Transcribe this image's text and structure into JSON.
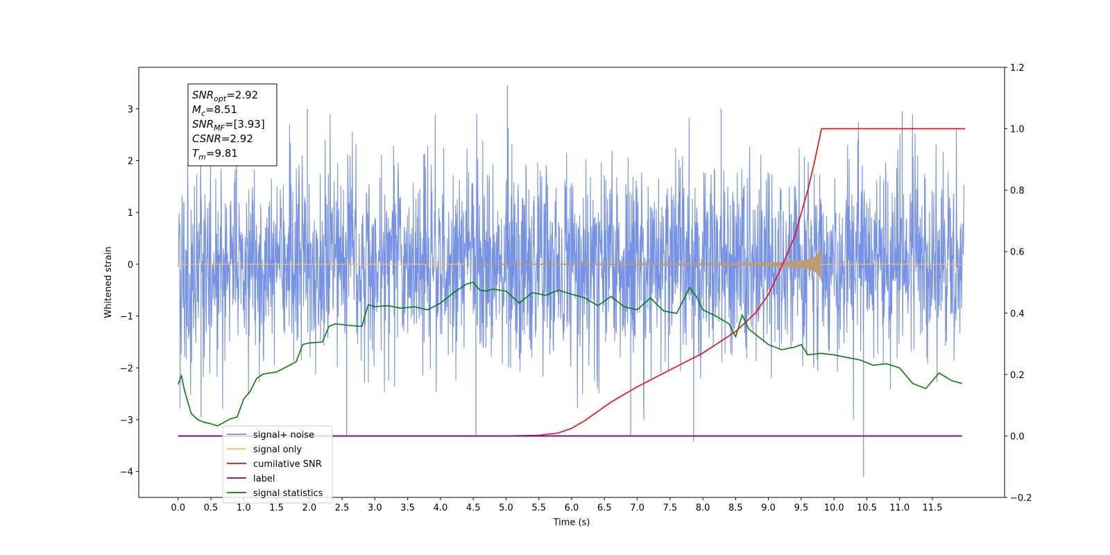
{
  "chart_data": {
    "type": "line",
    "title": "",
    "xlabel": "Time (s)",
    "ylabel": "Whitened strain",
    "y2label": "",
    "xlim": [
      -0.6,
      12.6
    ],
    "ylim": [
      -4.5,
      3.8
    ],
    "y2lim": [
      -0.2,
      1.2
    ],
    "xticks": [
      "0.0",
      "0.5",
      "1.0",
      "1.5",
      "2.0",
      "2.5",
      "3.0",
      "3.5",
      "4.0",
      "4.5",
      "5.0",
      "5.5",
      "6.0",
      "6.5",
      "7.0",
      "7.5",
      "8.0",
      "8.5",
      "9.0",
      "9.5",
      "10.0",
      "10.5",
      "11.0",
      "11.5"
    ],
    "yticks": [
      "3",
      "2",
      "1",
      "0",
      "−1",
      "−2",
      "−3",
      "−4"
    ],
    "y2ticks": [
      "1.2",
      "1.0",
      "0.8",
      "0.6",
      "0.4",
      "0.2",
      "0.0",
      "−0.2"
    ],
    "grid": false,
    "legend_position": "lower-left",
    "colors": {
      "signal_noise": "#6f8ce6",
      "signal_only": "#ffc04d",
      "signal_chirp": "#bf9b73",
      "cumulative_snr": "#ff0000",
      "label": "#7b007b",
      "signal_statistics": "#008000"
    },
    "annotation_lines": [
      {
        "sym": "SNR",
        "sub": "opt",
        "val": "=2.92"
      },
      {
        "sym": "M",
        "sub": "c",
        "val": "=8.51"
      },
      {
        "sym": "SNR",
        "sub": "MF",
        "val": "=[3.93]"
      },
      {
        "sym": "CSNR",
        "sub": "",
        "val": "=2.92"
      },
      {
        "sym": "T",
        "sub": "m",
        "val": "=9.81"
      }
    ],
    "series": [
      {
        "name": "signal+ noise",
        "axis": "left",
        "description": "whitened noise + signal, range ≈ −4.1 to 3.45, x 0–12"
      },
      {
        "name": "signal only",
        "axis": "left",
        "chirp_end_x": 9.81,
        "chirp_peak_amplitude": 0.35
      },
      {
        "name": "cumilative SNR",
        "axis": "right",
        "x": [
          0,
          5.0,
          5.5,
          5.8,
          6.0,
          6.2,
          6.4,
          6.6,
          6.8,
          7.0,
          7.5,
          8.0,
          8.5,
          8.8,
          9.0,
          9.2,
          9.4,
          9.6,
          9.7,
          9.81,
          12.0
        ],
        "y": [
          0,
          0,
          0.002,
          0.01,
          0.025,
          0.05,
          0.08,
          0.11,
          0.135,
          0.16,
          0.215,
          0.27,
          0.34,
          0.4,
          0.46,
          0.55,
          0.65,
          0.8,
          0.89,
          1.0,
          1.0
        ]
      },
      {
        "name": "label",
        "axis": "right",
        "x": [
          0,
          11.95
        ],
        "y": [
          0,
          0
        ]
      },
      {
        "name": "signal statistics",
        "axis": "left",
        "x": [
          0,
          0.05,
          0.1,
          0.2,
          0.3,
          0.4,
          0.5,
          0.6,
          0.7,
          0.8,
          0.9,
          1.0,
          1.1,
          1.2,
          1.3,
          1.5,
          1.7,
          1.8,
          1.9,
          2.0,
          2.2,
          2.3,
          2.4,
          2.6,
          2.8,
          2.9,
          3.0,
          3.2,
          3.4,
          3.6,
          3.8,
          4.0,
          4.2,
          4.4,
          4.5,
          4.6,
          4.7,
          4.8,
          5.0,
          5.2,
          5.4,
          5.6,
          5.8,
          6.0,
          6.2,
          6.4,
          6.6,
          6.8,
          7.0,
          7.2,
          7.4,
          7.6,
          7.8,
          7.9,
          8.0,
          8.2,
          8.4,
          8.5,
          8.6,
          8.7,
          8.8,
          9.0,
          9.2,
          9.4,
          9.5,
          9.6,
          9.8,
          10.0,
          10.2,
          10.4,
          10.6,
          10.8,
          11.0,
          11.2,
          11.4,
          11.6,
          11.8,
          11.95
        ],
        "y": [
          -2.32,
          -2.15,
          -2.45,
          -2.88,
          -3.0,
          -3.05,
          -3.08,
          -3.12,
          -3.05,
          -2.98,
          -2.95,
          -2.6,
          -2.45,
          -2.2,
          -2.12,
          -2.08,
          -1.95,
          -1.88,
          -1.55,
          -1.52,
          -1.5,
          -1.2,
          -1.15,
          -1.18,
          -1.2,
          -0.78,
          -0.82,
          -0.8,
          -0.85,
          -0.82,
          -0.88,
          -0.75,
          -0.55,
          -0.38,
          -0.35,
          -0.5,
          -0.52,
          -0.48,
          -0.52,
          -0.75,
          -0.55,
          -0.6,
          -0.5,
          -0.58,
          -0.65,
          -0.8,
          -0.62,
          -0.82,
          -0.88,
          -0.65,
          -0.9,
          -0.95,
          -0.45,
          -0.62,
          -0.88,
          -1.0,
          -1.15,
          -1.4,
          -0.98,
          -1.25,
          -1.35,
          -1.55,
          -1.65,
          -1.6,
          -1.55,
          -1.75,
          -1.72,
          -1.75,
          -1.8,
          -1.85,
          -1.95,
          -1.92,
          -2.0,
          -2.3,
          -2.4,
          -2.1,
          -2.25,
          -2.3
        ]
      }
    ]
  }
}
